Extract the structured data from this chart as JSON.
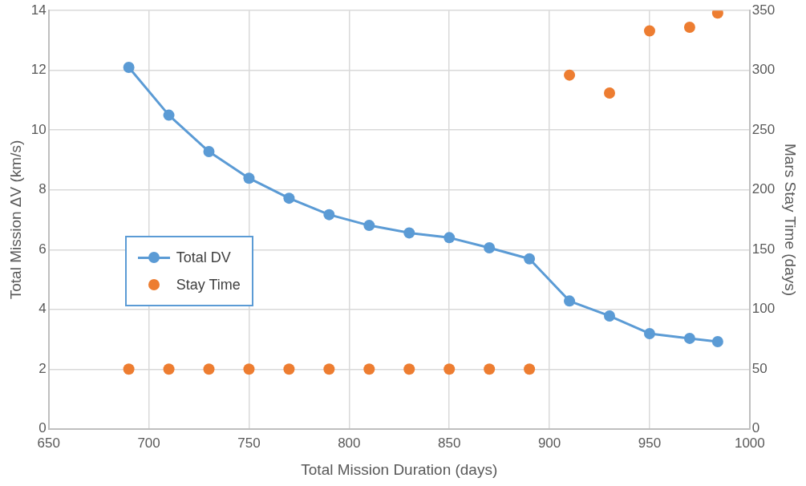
{
  "chart_data": {
    "type": "line",
    "xlabel": "Total Mission Duration (days)",
    "ylabel": "Total Mission ΔV (km/s)",
    "y2label": "Mars Stay Time (days)",
    "x": [
      690,
      710,
      730,
      750,
      770,
      790,
      810,
      830,
      850,
      870,
      890,
      910,
      930,
      950,
      970,
      984
    ],
    "series": [
      {
        "name": "Total DV",
        "color": "#5b9bd5",
        "marker": "circle",
        "values": [
          12.1,
          10.5,
          9.28,
          8.39,
          7.72,
          7.17,
          6.81,
          6.56,
          6.4,
          6.06,
          5.69,
          4.28,
          3.78,
          3.19,
          3.03,
          2.92
        ]
      },
      {
        "name": "Stay Time",
        "type": "scatter",
        "axis": "y2",
        "color": "#ed7d31",
        "marker": "circle",
        "values": [
          50,
          50,
          50,
          50,
          50,
          50,
          50,
          50,
          50,
          50,
          50,
          296,
          281,
          333,
          336,
          348
        ]
      }
    ],
    "xlim": [
      650,
      1000
    ],
    "xticks": [
      650,
      700,
      750,
      800,
      850,
      900,
      950,
      1000
    ],
    "ylim": [
      0,
      14
    ],
    "yticks": [
      0,
      2,
      4,
      6,
      8,
      10,
      12,
      14
    ],
    "y2lim": [
      0,
      350
    ],
    "y2ticks": [
      0,
      50,
      100,
      150,
      200,
      250,
      300,
      350
    ],
    "grid": true,
    "legend": "left"
  }
}
